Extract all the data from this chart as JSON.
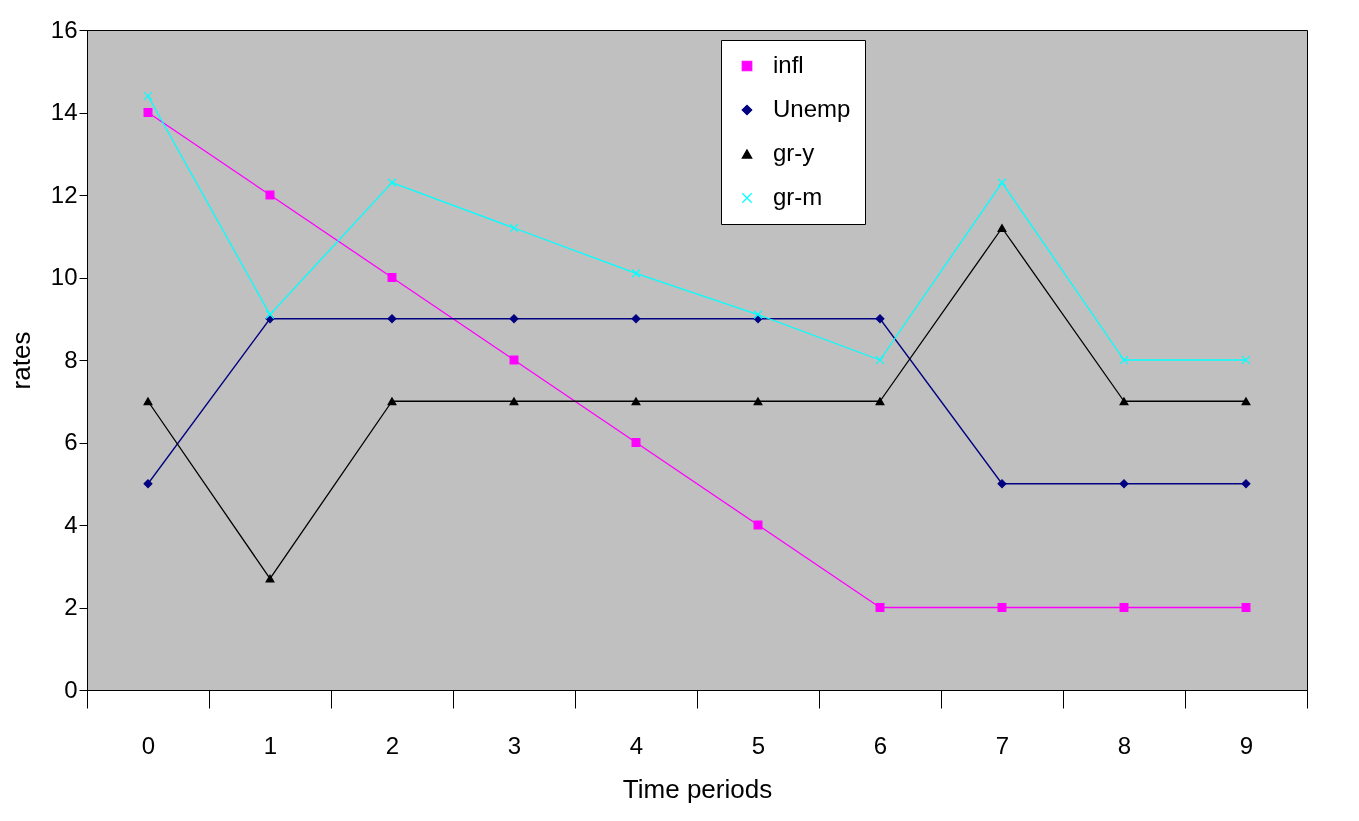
{
  "chart_data": {
    "type": "line",
    "xlabel": "Time periods",
    "ylabel": "rates",
    "categories": [
      "0",
      "1",
      "2",
      "3",
      "4",
      "5",
      "6",
      "7",
      "8",
      "9"
    ],
    "ylim": [
      0,
      16
    ],
    "yticks": [
      0,
      2,
      4,
      6,
      8,
      10,
      12,
      14,
      16
    ],
    "grid": false,
    "legend": "top",
    "series": [
      {
        "name": "infl",
        "color": "#ff00ff",
        "marker": "square",
        "values": [
          14,
          12,
          10,
          8,
          6,
          4,
          2,
          2,
          2,
          2
        ]
      },
      {
        "name": "Unemp",
        "color": "#000080",
        "marker": "diamond",
        "values": [
          5,
          9,
          9,
          9,
          9,
          9,
          9,
          5,
          5,
          5
        ]
      },
      {
        "name": "gr-y",
        "color": "#000000",
        "marker": "triangle",
        "values": [
          7,
          2.7,
          7,
          7,
          7,
          7,
          7,
          11.2,
          7,
          7
        ]
      },
      {
        "name": "gr-m",
        "color": "#00ffff",
        "marker": "cross",
        "values": [
          14.4,
          9.1,
          12.3,
          11.2,
          10.1,
          9.1,
          8,
          12.3,
          8,
          8
        ]
      }
    ]
  }
}
